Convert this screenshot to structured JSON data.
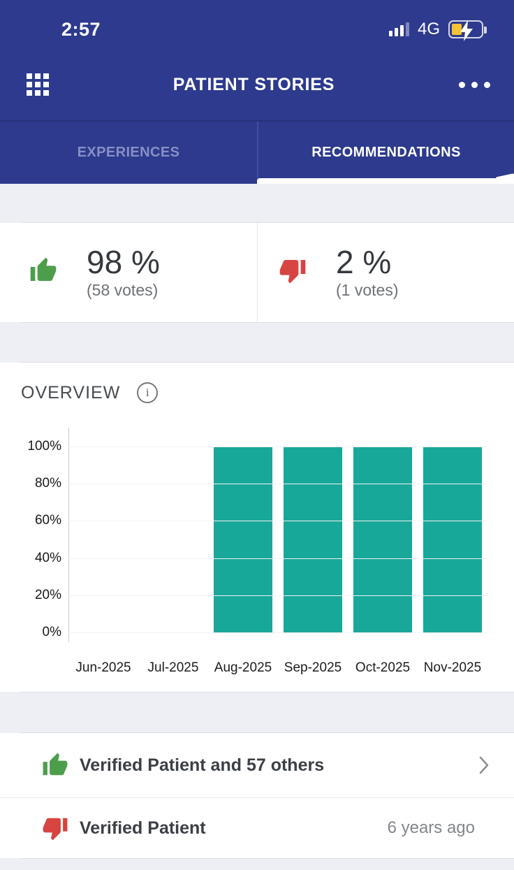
{
  "status_bar": {
    "time": "2:57",
    "network": "4G"
  },
  "header": {
    "title": "PATIENT STORIES"
  },
  "tabs": {
    "experiences": "EXPERIENCES",
    "recommendations": "RECOMMENDATIONS"
  },
  "stats": {
    "positive": {
      "percent": "98 %",
      "votes": "(58 votes)"
    },
    "negative": {
      "percent": "2 %",
      "votes": "(1 votes)"
    }
  },
  "overview": {
    "title": "OVERVIEW"
  },
  "chart_data": {
    "type": "bar",
    "title": "OVERVIEW",
    "categories": [
      "Jun-2025",
      "Jul-2025",
      "Aug-2025",
      "Sep-2025",
      "Oct-2025",
      "Nov-2025"
    ],
    "values": [
      0,
      0,
      100,
      100,
      100,
      100
    ],
    "unit": "%",
    "xlabel": "",
    "ylabel": "",
    "ylim": [
      0,
      100
    ],
    "yticks": [
      0,
      20,
      40,
      60,
      80,
      100
    ],
    "grid": true,
    "legend": false,
    "bar_color": "#18a899"
  },
  "reviews": [
    {
      "title": "Verified Patient and 57 others",
      "sentiment": "positive",
      "trailing": "chevron"
    },
    {
      "title": "Verified Patient",
      "sentiment": "negative",
      "timestamp": "6 years ago"
    }
  ],
  "colors": {
    "primary_blue": "#2d3a8d",
    "positive_green": "#4d9e4b",
    "negative_red": "#d64541",
    "bar_teal": "#18a899",
    "charging_yellow": "#f2c431"
  }
}
